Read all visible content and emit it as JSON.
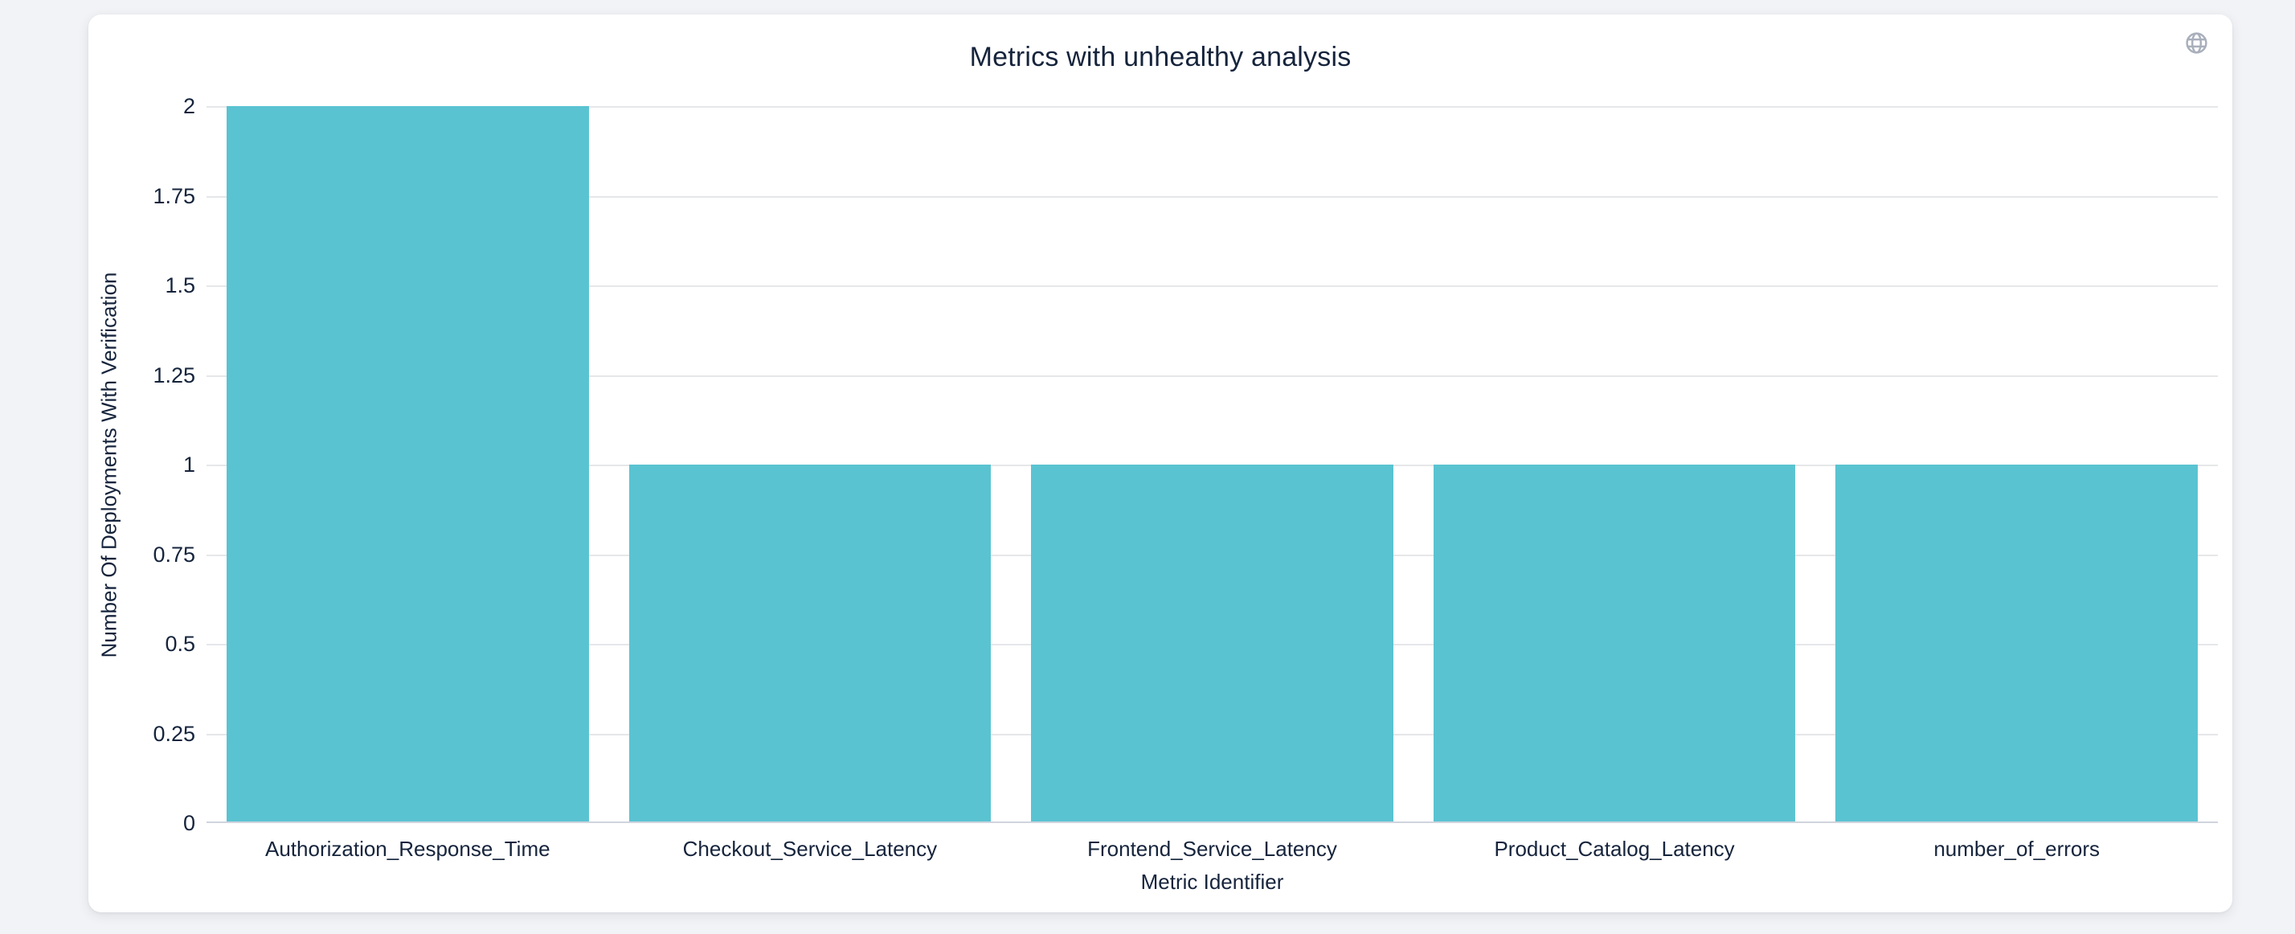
{
  "page": {
    "background_color": "#f2f3f6",
    "card_color": "#ffffff"
  },
  "toolbar": {
    "globe_icon": "globe",
    "globe_icon_color": "#a9afbb"
  },
  "chart_data": {
    "type": "bar",
    "title": "Metrics with unhealthy analysis",
    "categories": [
      "Authorization_Response_Time",
      "Checkout_Service_Latency",
      "Frontend_Service_Latency",
      "Product_Catalog_Latency",
      "number_of_errors"
    ],
    "values": [
      2,
      1,
      1,
      1,
      1
    ],
    "xlabel": "Metric Identifier",
    "ylabel": "Number Of Deployments With Verification",
    "ylim": [
      0,
      2
    ],
    "ytick_step": 0.25,
    "ytick_labels": [
      "0",
      "0.25",
      "0.5",
      "0.75",
      "1",
      "1.25",
      "1.5",
      "1.75",
      "2"
    ],
    "grid": "horizontal",
    "legend": "none",
    "bar_color": "#5ac3d1",
    "gridline_color": "#e6e7e9",
    "axis_line_color": "#cfd4de",
    "text_color": "#16243c"
  }
}
